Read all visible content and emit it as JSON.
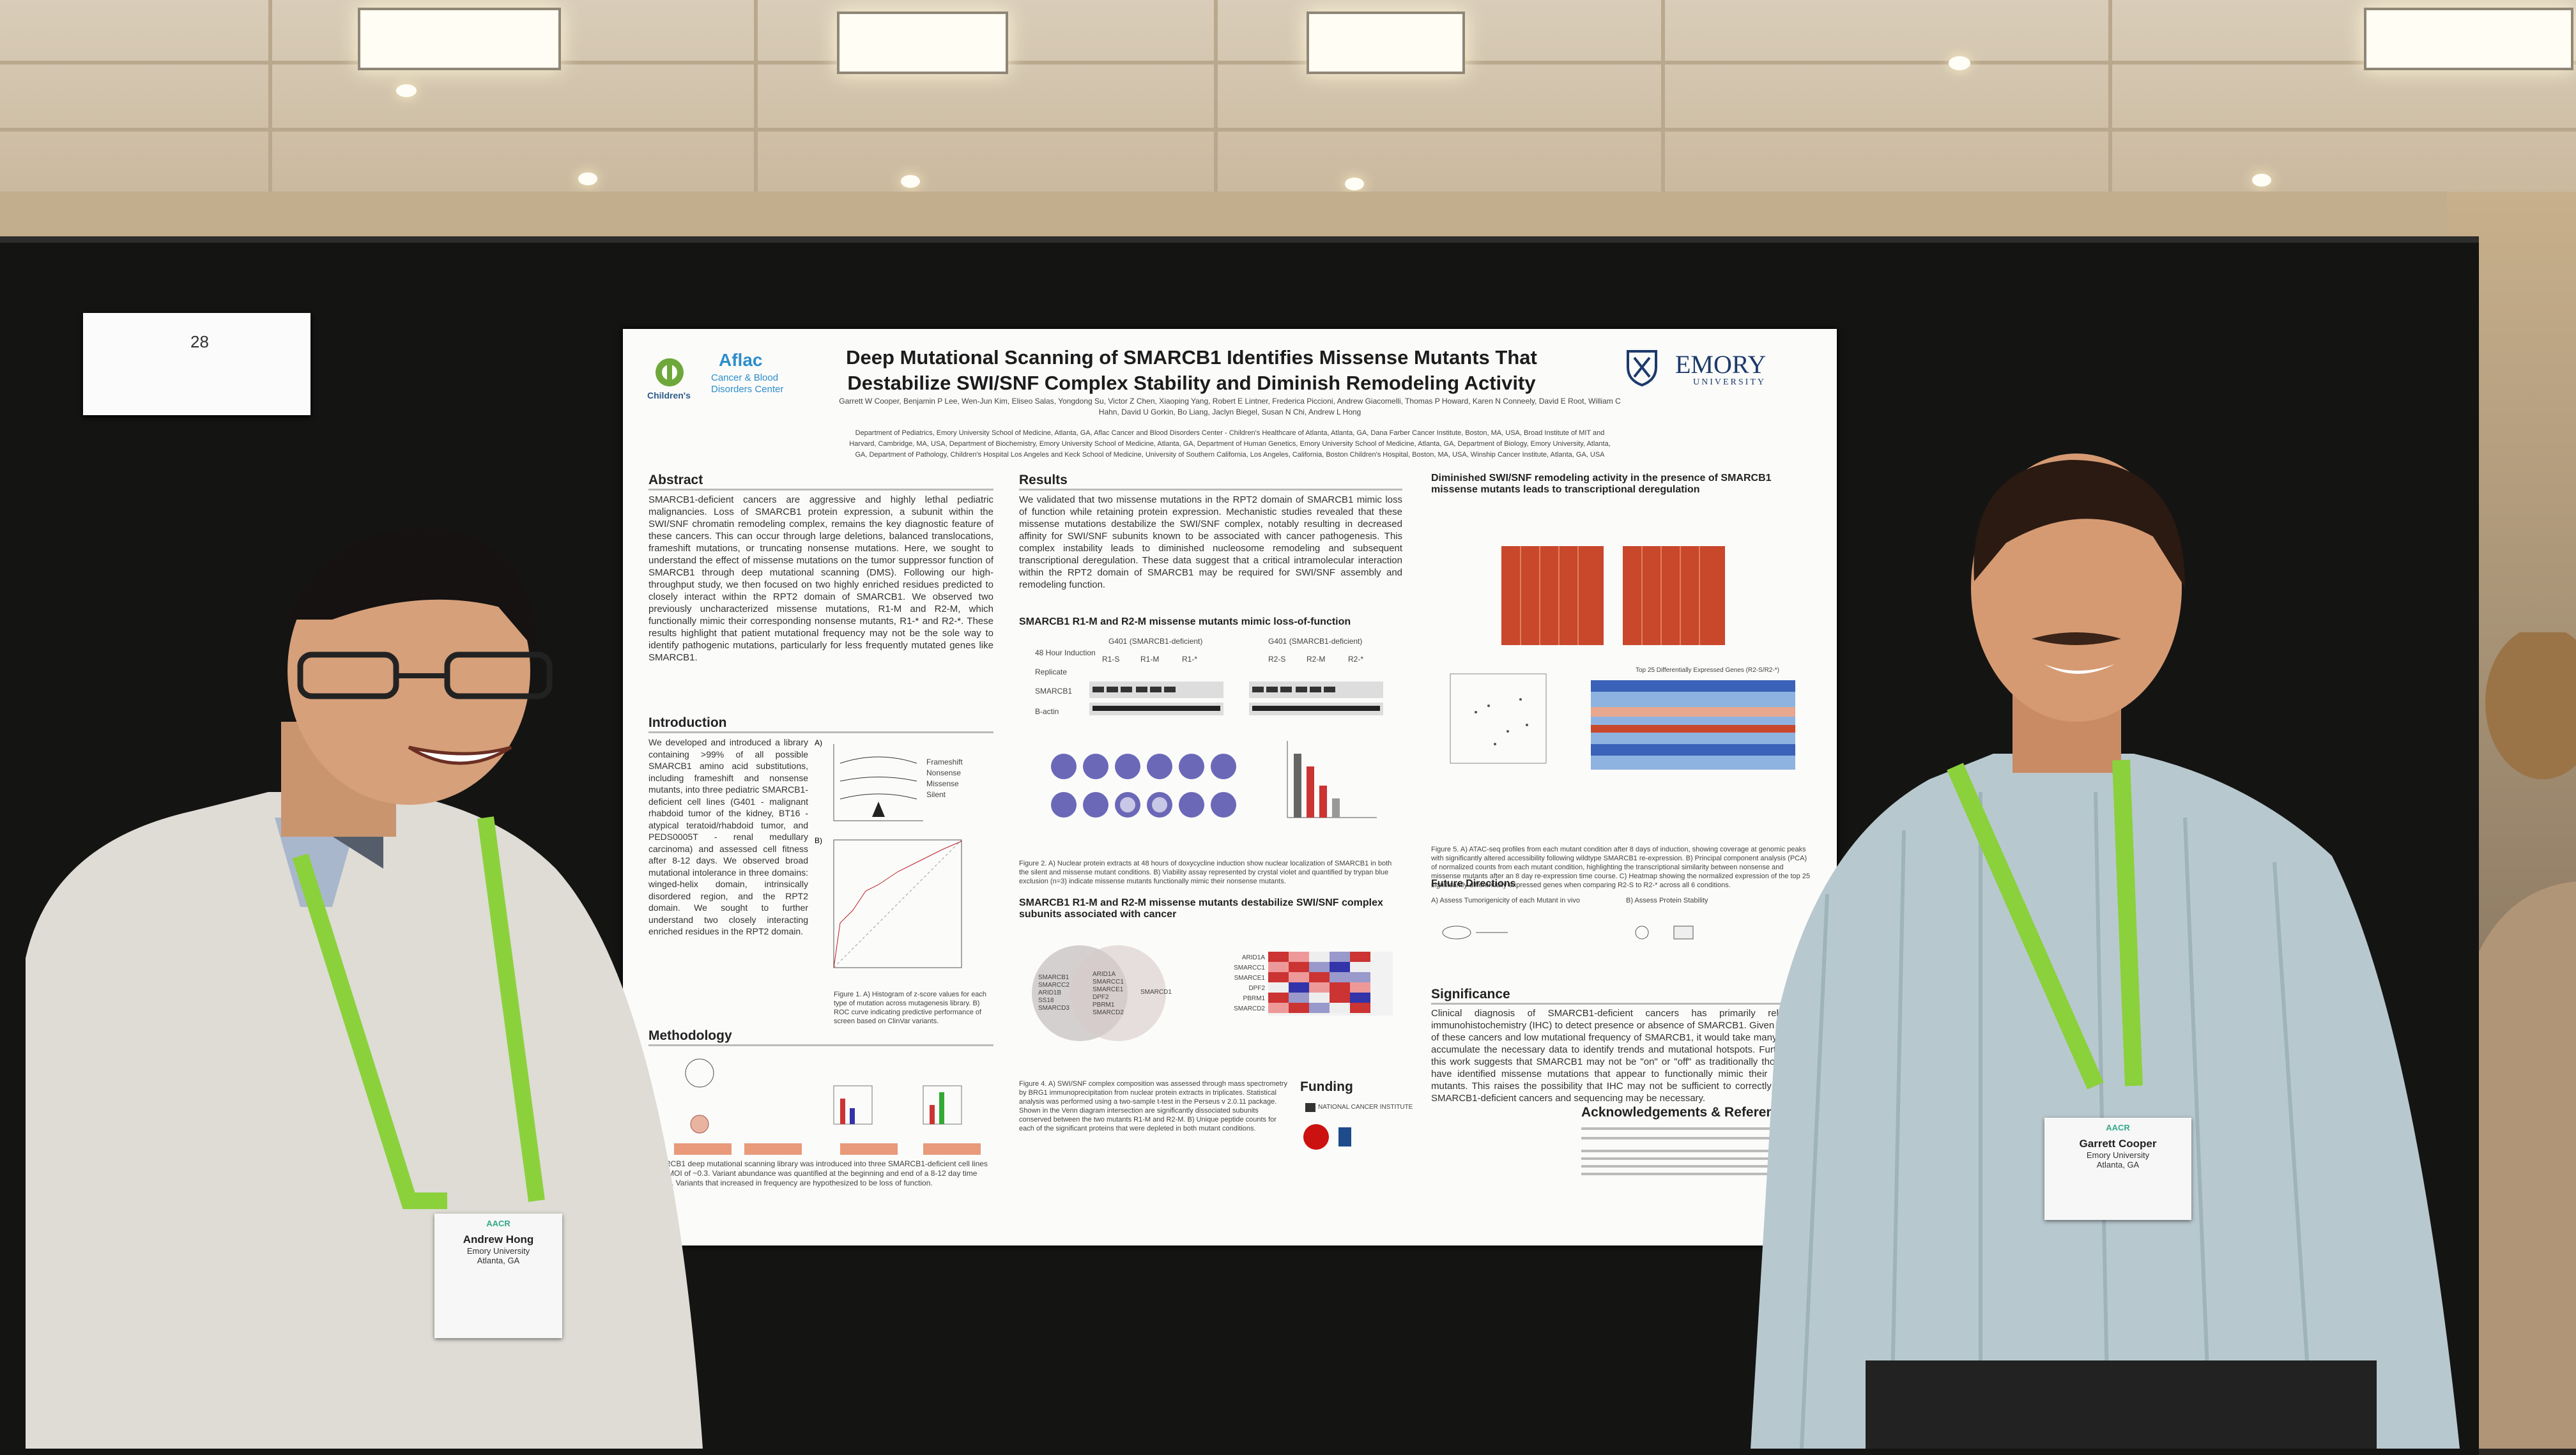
{
  "booth": {
    "number": "28"
  },
  "poster": {
    "title_line1": "Deep Mutational Scanning of SMARCB1 Identifies Missense Mutants That",
    "title_line2": "Destabilize SWI/SNF Complex Stability and Diminish Remodeling Activity",
    "logo_left_1": "Children's",
    "logo_left_2": "Aflac",
    "logo_left_3": "Cancer & Blood",
    "logo_left_4": "Disorders Center",
    "logo_right_1": "EMORY",
    "logo_right_2": "UNIVERSITY",
    "authors_line1": "Garrett W Cooper, Benjamin P Lee, Wen-Jun Kim, Eliseo Salas, Yongdong Su, Victor Z Chen, Xiaoping Yang, Robert E Lintner, Frederica Piccioni, Andrew Giacomelli, Thomas P Howard, Karen N Conneely, David E Root, William C",
    "authors_line2": "Hahn, David U Gorkin, Bo Liang, Jaclyn Biegel, Susan N Chi, Andrew L Hong",
    "affil_line1": "Department of Pediatrics, Emory University School of Medicine, Atlanta, GA, Aflac Cancer and Blood Disorders Center - Children's Healthcare of Atlanta, Atlanta, GA, Dana Farber Cancer Institute, Boston, MA, USA, Broad Institute of MIT and",
    "affil_line2": "Harvard, Cambridge, MA, USA, Department of Biochemistry, Emory University School of Medicine, Atlanta, GA, Department of Human Genetics, Emory University School of Medicine, Atlanta, GA, Department of Biology, Emory University, Atlanta,",
    "affil_line3": "GA, Department of Pathology, Children's Hospital Los Angeles and Keck School of Medicine, University of Southern California, Los Angeles, California, Boston Children's Hospital, Boston, MA, USA, Winship Cancer Institute, Atlanta, GA, USA",
    "abstract_head": "Abstract",
    "abstract_text": "SMARCB1-deficient cancers are aggressive and highly lethal pediatric malignancies. Loss of SMARCB1 protein expression, a subunit within the SWI/SNF chromatin remodeling complex, remains the key diagnostic feature of these cancers. This can occur through large deletions, balanced translocations, frameshift mutations, or truncating nonsense mutations. Here, we sought to understand the effect of missense mutations on the tumor suppressor function of SMARCB1 through deep mutational scanning (DMS). Following our high-throughput study, we then focused on two highly enriched residues predicted to closely interact within the RPT2 domain of SMARCB1. We observed two previously uncharacterized missense mutations, R1-M and R2-M, which functionally mimic their corresponding nonsense mutants, R1-* and R2-*. These results highlight that patient mutational frequency may not be the sole way to identify pathogenic mutations, particularly for less frequently mutated genes like SMARCB1.",
    "intro_head": "Introduction",
    "intro_text": "We developed and introduced a library containing >99% of all possible SMARCB1 amino acid substitutions, including frameshift and nonsense mutants, into three pediatric SMARCB1-deficient cell lines (G401 - malignant rhabdoid tumor of the kidney, BT16 - atypical teratoid/rhabdoid tumor, and PEDS0005T - renal medullary carcinoma) and assessed cell fitness after 8-12 days. We observed broad mutational intolerance in three domains: winged-helix domain, intrinsically disordered region, and the RPT2 domain. We sought to further understand two closely interacting enriched residues in the RPT2 domain.",
    "fig1_legend": [
      "Frameshift",
      "Nonsense",
      "Missense",
      "Silent"
    ],
    "fig1_caption": "Figure 1. A) Histogram of z-score values for each type of mutation across mutagenesis library. B) ROC curve indicating predictive performance of screen based on ClinVar variants.",
    "method_head": "Methodology",
    "method_caption": "SMARCB1 deep mutational scanning library was introduced into three SMARCB1-deficient cell lines at an MOI of ~0.3. Variant abundance was quantified at the beginning and end of a 8-12 day time course. Variants that increased in frequency are hypothesized to be loss of function.",
    "results_head": "Results",
    "results_text": "We validated that two missense mutations in the RPT2 domain of SMARCB1 mimic loss of function while retaining protein expression. Mechanistic studies revealed that these missense mutations destabilize the SWI/SNF complex, notably resulting in decreased affinity for SWI/SNF subunits known to be associated with cancer pathogenesis. This complex instability leads to diminished nucleosome remodeling and subsequent transcriptional deregulation. These data suggest that a critical intramolecular interaction within the RPT2 domain of SMARCB1 may be required for SWI/SNF assembly and remodeling function.",
    "sub1": "SMARCB1 R1-M and R2-M missense mutants mimic loss-of-function",
    "wb_label1": "G401 (SMARCB1-deficient)",
    "wb_label2": "G401 (SMARCB1-deficient)",
    "wb_rows": [
      "48 Hour Induction",
      "Replicate",
      "SMARCB1",
      "B-actin"
    ],
    "wb_groups": [
      "R1-S",
      "R1-M",
      "R1-*",
      "R2-S",
      "R2-M",
      "R2-*"
    ],
    "fig2_caption": "Figure 2. A) Nuclear protein extracts at 48 hours of doxycycline induction show nuclear localization of SMARCB1 in both the silent and missense mutant conditions. B) Viability assay represented by crystal violet and quantified by trypan blue exclusion (n=3) indicate missense mutants functionally mimic their nonsense mutants.",
    "sub2": "SMARCB1 R1-M and R2-M missense mutants destabilize SWI/SNF complex subunits associated with cancer",
    "venn_left": [
      "SMARCB1",
      "SMARCC2",
      "ARID1B",
      "SS18",
      "SMARCD3"
    ],
    "venn_mid": [
      "ARID1A",
      "SMARCC1",
      "SMARCE1",
      "DPF2",
      "PBRM1",
      "SMARCD2"
    ],
    "venn_right": [
      "SMARCD1"
    ],
    "heat_rows": [
      "ARID1A",
      "SMARCC1",
      "SMARCE1",
      "DPF2",
      "PBRM1",
      "SMARCD2"
    ],
    "fig4_caption": "Figure 4. A) SWI/SNF complex composition was assessed through mass spectrometry by BRG1 immunoprecipitation from nuclear protein extracts in triplicates. Statistical analysis was performed using a two-sample t-test in the Perseus v 2.0.11 package. Shown in the Venn diagram intersection are significantly dissociated subunits conserved between the two mutants R1-M and R2-M. B) Unique peptide counts for each of the significant proteins that were depleted in both mutant conditions.",
    "funding_head": "Funding",
    "funding_nci": "NATIONAL CANCER INSTITUTE",
    "sub3": "Diminished SWI/SNF remodeling activity in the presence of SMARCB1 missense mutants leads to transcriptional deregulation",
    "heat_title": "Top 25 Differentially Expressed Genes (R2-S/R2-*)",
    "fig5_caption": "Figure 5. A) ATAC-seq profiles from each mutant condition after 8 days of induction, showing coverage at genomic peaks with significantly altered accessibility following wildtype SMARCB1 re-expression. B) Principal component analysis (PCA) of normalized counts from each mutant condition, highlighting the transcriptional similarity between nonsense and missense mutants after an 8 day re-expression time course. C) Heatmap showing the normalized expression of the top 25 significantly differentially expressed genes when comparing R2-S to R2-* across all 6 conditions.",
    "future_head": "Future Directions",
    "future_a": "A) Assess Tumorigenicity of each Mutant in vivo",
    "future_b": "B) Assess Protein Stability",
    "signif_head": "Significance",
    "signif_text": "Clinical diagnosis of SMARCB1-deficient cancers has primarily relied on immunohistochemistry (IHC) to detect presence or absence of SMARCB1. Given the rarity of these cancers and low mutational frequency of SMARCB1, it would take many years to accumulate the necessary data to identify trends and mutational hotspots. Furthermore, this work suggests that SMARCB1 may not be \"on\" or \"off\" as traditionally thought. We have identified missense mutations that appear to functionally mimic their nonsense mutants. This raises the possibility that IHC may not be sufficient to correctly diagnose SMARCB1-deficient cancers and sequencing may be necessary.",
    "ack_head": "Acknowledgements & References"
  },
  "people": {
    "left_badge_name": "Andrew Hong",
    "left_badge_org": "Emory University",
    "left_badge_loc": "Atlanta, GA",
    "right_badge_name": "Garrett Cooper",
    "right_badge_org": "Emory University",
    "right_badge_loc": "Atlanta, GA",
    "lanyard_text": "AACR"
  }
}
